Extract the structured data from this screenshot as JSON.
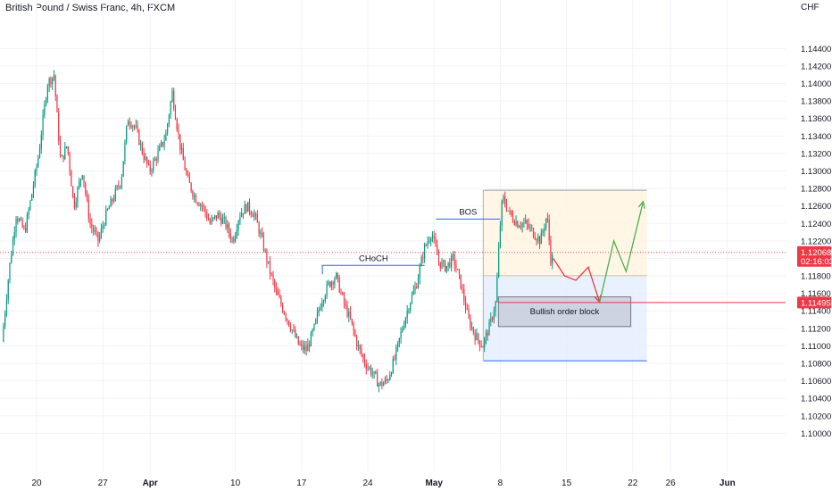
{
  "header": {
    "title": "British Pound / Swiss Franc, 4h, FXCM",
    "currency": "CHF"
  },
  "chart_data": {
    "type": "candlestick",
    "ylim": [
      1.1,
      1.147
    ],
    "y_ticks": [
      "1.14400",
      "1.14200",
      "1.14000",
      "1.13800",
      "1.13600",
      "1.13400",
      "1.13200",
      "1.13000",
      "1.12800",
      "1.12600",
      "1.12400",
      "1.12200",
      "1.12000",
      "1.11800",
      "1.11600",
      "1.11400",
      "1.11200",
      "1.11000",
      "1.10800",
      "1.10600",
      "1.10400",
      "1.10200",
      "1.10000"
    ],
    "x_ticks": [
      {
        "label": "20",
        "day": 20
      },
      {
        "label": "27",
        "day": 27
      },
      {
        "label": "Apr",
        "day": 32,
        "bold": true
      },
      {
        "label": "10",
        "day": 41
      },
      {
        "label": "17",
        "day": 48
      },
      {
        "label": "24",
        "day": 55
      },
      {
        "label": "May",
        "day": 62,
        "bold": true
      },
      {
        "label": "8",
        "day": 69
      },
      {
        "label": "15",
        "day": 76
      },
      {
        "label": "22",
        "day": 83
      },
      {
        "label": "26",
        "day": 87
      },
      {
        "label": "Jun",
        "day": 93,
        "bold": true
      }
    ],
    "price_path": [
      [
        16.5,
        1.1105
      ],
      [
        17.3,
        1.119
      ],
      [
        18.0,
        1.125
      ],
      [
        18.9,
        1.123
      ],
      [
        19.6,
        1.127
      ],
      [
        20.4,
        1.132
      ],
      [
        21.3,
        1.14
      ],
      [
        22.0,
        1.141
      ],
      [
        22.7,
        1.131
      ],
      [
        23.4,
        1.133
      ],
      [
        24.1,
        1.126
      ],
      [
        25.0,
        1.13
      ],
      [
        25.8,
        1.124
      ],
      [
        26.7,
        1.122
      ],
      [
        27.5,
        1.125
      ],
      [
        28.3,
        1.127
      ],
      [
        29.1,
        1.129
      ],
      [
        29.8,
        1.136
      ],
      [
        30.6,
        1.135
      ],
      [
        31.4,
        1.132
      ],
      [
        32.1,
        1.13
      ],
      [
        33.0,
        1.132
      ],
      [
        33.8,
        1.134
      ],
      [
        34.5,
        1.139
      ],
      [
        35.3,
        1.133
      ],
      [
        36.1,
        1.129
      ],
      [
        36.9,
        1.127
      ],
      [
        37.7,
        1.126
      ],
      [
        38.5,
        1.124
      ],
      [
        39.3,
        1.125
      ],
      [
        40.1,
        1.124
      ],
      [
        40.9,
        1.122
      ],
      [
        41.6,
        1.125
      ],
      [
        42.4,
        1.126
      ],
      [
        43.2,
        1.125
      ],
      [
        44.0,
        1.122
      ],
      [
        44.7,
        1.119
      ],
      [
        45.5,
        1.116
      ],
      [
        46.3,
        1.114
      ],
      [
        47.1,
        1.112
      ],
      [
        47.9,
        1.11
      ],
      [
        48.7,
        1.1095
      ],
      [
        49.5,
        1.112
      ],
      [
        50.2,
        1.115
      ],
      [
        51.0,
        1.117
      ],
      [
        51.8,
        1.118
      ],
      [
        52.6,
        1.115
      ],
      [
        53.3,
        1.113
      ],
      [
        54.1,
        1.11
      ],
      [
        54.9,
        1.108
      ],
      [
        55.6,
        1.107
      ],
      [
        56.4,
        1.1055
      ],
      [
        57.2,
        1.106
      ],
      [
        58.0,
        1.1085
      ],
      [
        58.8,
        1.112
      ],
      [
        59.6,
        1.115
      ],
      [
        60.3,
        1.117
      ],
      [
        61.1,
        1.121
      ],
      [
        61.9,
        1.123
      ],
      [
        62.7,
        1.1195
      ],
      [
        63.4,
        1.119
      ],
      [
        64.2,
        1.12
      ],
      [
        65.0,
        1.117
      ],
      [
        65.8,
        1.113
      ],
      [
        66.6,
        1.111
      ],
      [
        67.3,
        1.11
      ],
      [
        68.1,
        1.1125
      ],
      [
        68.7,
        1.115
      ],
      [
        69.1,
        1.123
      ],
      [
        69.4,
        1.127
      ],
      [
        70.2,
        1.125
      ],
      [
        71.0,
        1.124
      ],
      [
        71.8,
        1.124
      ],
      [
        72.6,
        1.123
      ],
      [
        73.4,
        1.122
      ],
      [
        74.1,
        1.125
      ],
      [
        74.5,
        1.12
      ]
    ],
    "projection": {
      "down": [
        [
          74.6,
          1.12
        ],
        [
          75.8,
          1.118
        ],
        [
          77.0,
          1.1175
        ],
        [
          78.3,
          1.119
        ],
        [
          79.5,
          1.115
        ]
      ],
      "up": [
        [
          79.5,
          1.115
        ],
        [
          81.0,
          1.122
        ],
        [
          82.3,
          1.1185
        ],
        [
          84.1,
          1.1265
        ]
      ]
    },
    "annotations": {
      "choch": {
        "label": "CHoCH",
        "level": 1.1192,
        "from_day": 50.2,
        "to_day": 61.0
      },
      "bos": {
        "label": "BOS",
        "level": 1.1245,
        "from_day": 62.2,
        "to_day": 69.0
      },
      "supply_zone": {
        "top": 1.1278,
        "bottom": 1.118,
        "from_day": 67.2,
        "to_day": 84.5
      },
      "demand_zone": {
        "top": 1.118,
        "bottom": 1.1083,
        "from_day": 67.2,
        "to_day": 84.5
      },
      "order_block": {
        "label": "Bullish order block",
        "top": 1.1156,
        "bottom": 1.1122,
        "from_day": 68.8,
        "to_day": 82.8
      }
    },
    "price_levels": [
      {
        "price": "1.12068",
        "time": "02:16:03",
        "value": 1.12068,
        "color": "#f23645"
      },
      {
        "price": "1.11495",
        "value": 1.11495,
        "color": "#f23645"
      }
    ]
  }
}
